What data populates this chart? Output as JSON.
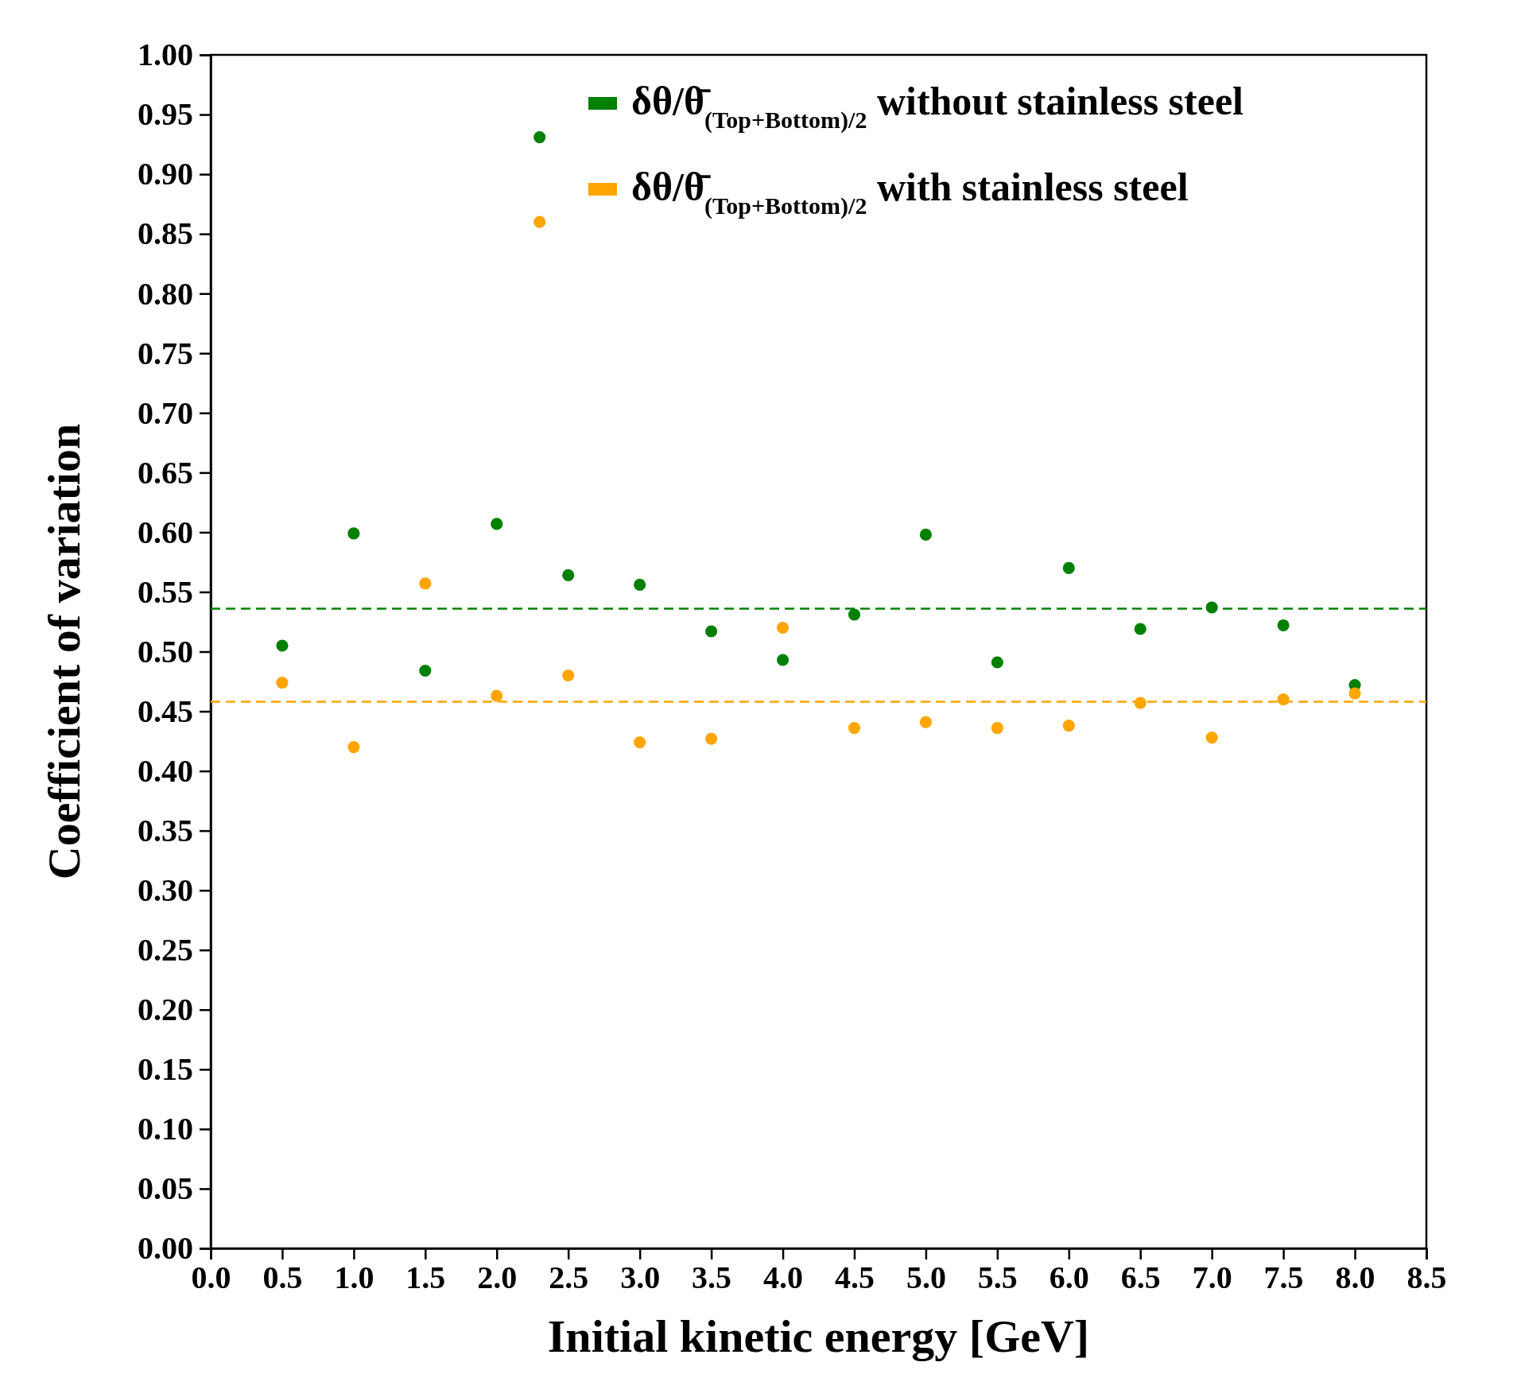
{
  "chart_data": {
    "type": "scatter",
    "xlabel": "Initial kinetic energy [GeV]",
    "ylabel": "Coefficient of variation",
    "xlim": [
      0,
      8.5
    ],
    "ylim": [
      0,
      1
    ],
    "xticks": [
      {
        "value": 0,
        "label": "0.0"
      },
      {
        "value": 0.5,
        "label": "0.5"
      },
      {
        "value": 1,
        "label": "1.0"
      },
      {
        "value": 1.5,
        "label": "1.5"
      },
      {
        "value": 2,
        "label": "2.0"
      },
      {
        "value": 2.5,
        "label": "2.5"
      },
      {
        "value": 3,
        "label": "3.0"
      },
      {
        "value": 3.5,
        "label": "3.5"
      },
      {
        "value": 4,
        "label": "4.0"
      },
      {
        "value": 4.5,
        "label": "4.5"
      },
      {
        "value": 5,
        "label": "5.0"
      },
      {
        "value": 5.5,
        "label": "5.5"
      },
      {
        "value": 6,
        "label": "6.0"
      },
      {
        "value": 6.5,
        "label": "6.5"
      },
      {
        "value": 7,
        "label": "7.0"
      },
      {
        "value": 7.5,
        "label": "7.5"
      },
      {
        "value": 8,
        "label": "8.0"
      },
      {
        "value": 8.5,
        "label": "8.5"
      }
    ],
    "yticks": [
      {
        "value": 0,
        "label": "0.00"
      },
      {
        "value": 0.05,
        "label": "0.05"
      },
      {
        "value": 0.1,
        "label": "0.10"
      },
      {
        "value": 0.15,
        "label": "0.15"
      },
      {
        "value": 0.2,
        "label": "0.20"
      },
      {
        "value": 0.25,
        "label": "0.25"
      },
      {
        "value": 0.3,
        "label": "0.30"
      },
      {
        "value": 0.35,
        "label": "0.35"
      },
      {
        "value": 0.4,
        "label": "0.40"
      },
      {
        "value": 0.45,
        "label": "0.45"
      },
      {
        "value": 0.5,
        "label": "0.50"
      },
      {
        "value": 0.55,
        "label": "0.55"
      },
      {
        "value": 0.6,
        "label": "0.60"
      },
      {
        "value": 0.65,
        "label": "0.65"
      },
      {
        "value": 0.7,
        "label": "0.70"
      },
      {
        "value": 0.75,
        "label": "0.75"
      },
      {
        "value": 0.8,
        "label": "0.80"
      },
      {
        "value": 0.85,
        "label": "0.85"
      },
      {
        "value": 0.9,
        "label": "0.90"
      },
      {
        "value": 0.95,
        "label": "0.95"
      },
      {
        "value": 1,
        "label": "1.00"
      }
    ],
    "x": [
      0.5,
      1,
      1.5,
      2,
      2.3,
      2.5,
      3,
      3.5,
      4,
      4.5,
      5,
      5.5,
      6,
      6.5,
      7,
      7.5,
      8
    ],
    "marker": "circle",
    "legend": "top right",
    "series": [
      {
        "name": "δθ/θ̄$_{(Top+Bottom)/2}$ without stainless steel",
        "color": "#008000",
        "values": [
          0.505,
          0.599,
          0.484,
          0.607,
          0.931,
          0.564,
          0.556,
          0.517,
          0.493,
          0.531,
          0.598,
          0.491,
          0.57,
          0.519,
          0.537,
          0.522,
          0.472
        ]
      },
      {
        "name": "δθ/θ̄$_{(Top+Bottom)/2}$ with stainless steel",
        "color": "#ffa500",
        "values": [
          0.474,
          0.42,
          0.557,
          0.463,
          0.86,
          0.48,
          0.424,
          0.427,
          0.52,
          0.436,
          0.441,
          0.436,
          0.438,
          0.457,
          0.428,
          0.46,
          0.465
        ]
      }
    ],
    "ref_lines": [
      {
        "axis": "y",
        "value": 0.536,
        "color": "#008000",
        "line_style": "dashed"
      },
      {
        "axis": "y",
        "value": 0.458,
        "color": "#ffa500",
        "line_style": "dashed"
      }
    ]
  }
}
